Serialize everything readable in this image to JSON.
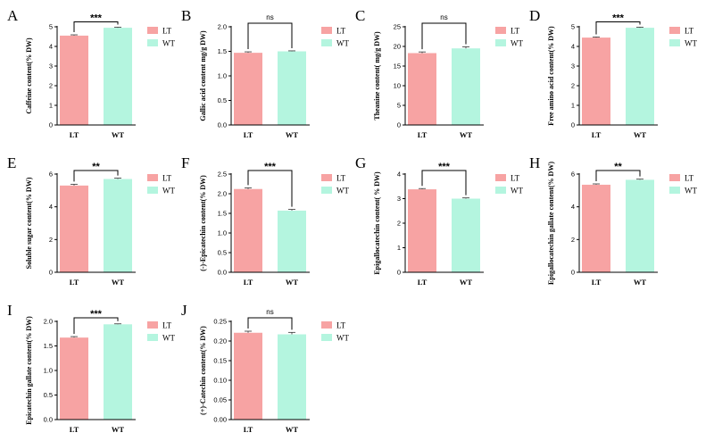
{
  "colors": {
    "LT": "#f7a3a3",
    "WT": "#b4f5df",
    "axis": "#000000"
  },
  "legend": [
    "LT",
    "WT"
  ],
  "chart_data": [
    {
      "panel": "A",
      "type": "bar",
      "ylabel": "Caffeine content(% DW)",
      "categories": [
        "LT",
        "WT"
      ],
      "values": [
        4.55,
        4.95
      ],
      "errors": [
        0.04,
        0.03
      ],
      "ylim": [
        0,
        5
      ],
      "yticks": [
        0,
        1,
        2,
        3,
        4,
        5
      ],
      "tick_labels": [
        "0",
        "1",
        "2",
        "3",
        "4",
        "5"
      ],
      "significance": "***"
    },
    {
      "panel": "B",
      "type": "bar",
      "ylabel": "Gallic acid content mg/g DW)",
      "categories": [
        "LT",
        "WT"
      ],
      "values": [
        1.47,
        1.5
      ],
      "errors": [
        0.02,
        0.01
      ],
      "ylim": [
        0,
        2.0
      ],
      "yticks": [
        0,
        0.5,
        1.0,
        1.5,
        2.0
      ],
      "tick_labels": [
        "0.0",
        "0.5",
        "1.0",
        "1.5",
        "2.0"
      ],
      "significance": "ns"
    },
    {
      "panel": "C",
      "type": "bar",
      "ylabel": "Theanine content( mg/g DW)",
      "categories": [
        "LT",
        "WT"
      ],
      "values": [
        18.3,
        19.5
      ],
      "errors": [
        0.3,
        0.4
      ],
      "ylim": [
        0,
        25
      ],
      "yticks": [
        0,
        5,
        10,
        15,
        20,
        25
      ],
      "tick_labels": [
        "0",
        "5",
        "10",
        "15",
        "20",
        "25"
      ],
      "significance": "ns"
    },
    {
      "panel": "D",
      "type": "bar",
      "ylabel": "Free amino acid content(% DW)",
      "categories": [
        "LT",
        "WT"
      ],
      "values": [
        4.45,
        4.95
      ],
      "errors": [
        0.03,
        0.03
      ],
      "ylim": [
        0,
        5
      ],
      "yticks": [
        0,
        1,
        2,
        3,
        4,
        5
      ],
      "tick_labels": [
        "0",
        "1",
        "2",
        "3",
        "4",
        "5"
      ],
      "significance": "***"
    },
    {
      "panel": "E",
      "type": "bar",
      "ylabel": "Soluble sugar content(% DW)",
      "categories": [
        "LT",
        "WT"
      ],
      "values": [
        5.3,
        5.7
      ],
      "errors": [
        0.08,
        0.05
      ],
      "ylim": [
        0,
        6
      ],
      "yticks": [
        0,
        2,
        4,
        6
      ],
      "tick_labels": [
        "0",
        "2",
        "4",
        "6"
      ],
      "significance": "**"
    },
    {
      "panel": "F",
      "type": "bar",
      "ylabel": "(-)-Epicatechin content(% DW)",
      "categories": [
        "LT",
        "WT"
      ],
      "values": [
        2.12,
        1.57
      ],
      "errors": [
        0.03,
        0.03
      ],
      "ylim": [
        0,
        2.5
      ],
      "yticks": [
        0,
        0.5,
        1.0,
        1.5,
        2.0,
        2.5
      ],
      "tick_labels": [
        "0.0",
        "0.5",
        "1.0",
        "1.5",
        "2.0",
        "2.5"
      ],
      "significance": "***"
    },
    {
      "panel": "G",
      "type": "bar",
      "ylabel": "Epigallocatechin content( % DW)",
      "categories": [
        "LT",
        "WT"
      ],
      "values": [
        3.38,
        3.0
      ],
      "errors": [
        0.03,
        0.03
      ],
      "ylim": [
        0,
        4
      ],
      "yticks": [
        0,
        1,
        2,
        3,
        4
      ],
      "tick_labels": [
        "0",
        "1",
        "2",
        "3",
        "4"
      ],
      "significance": "***"
    },
    {
      "panel": "H",
      "type": "bar",
      "ylabel": "Epigallocatechin gallate content(% DW)",
      "categories": [
        "LT",
        "WT"
      ],
      "values": [
        5.35,
        5.65
      ],
      "errors": [
        0.05,
        0.04
      ],
      "ylim": [
        0,
        6
      ],
      "yticks": [
        0,
        2,
        4,
        6
      ],
      "tick_labels": [
        "0",
        "2",
        "4",
        "6"
      ],
      "significance": "**"
    },
    {
      "panel": "I",
      "type": "bar",
      "ylabel": "Epicatechin gallate content(% DW)",
      "categories": [
        "LT",
        "WT"
      ],
      "values": [
        1.67,
        1.94
      ],
      "errors": [
        0.02,
        0.01
      ],
      "ylim": [
        0,
        2.0
      ],
      "yticks": [
        0,
        0.5,
        1.0,
        1.5,
        2.0
      ],
      "tick_labels": [
        "0.0",
        "0.5",
        "1.0",
        "1.5",
        "2.0"
      ],
      "significance": "***"
    },
    {
      "panel": "J",
      "type": "bar",
      "ylabel": "(+)-Catechin content(% DW)",
      "categories": [
        "LT",
        "WT"
      ],
      "values": [
        0.221,
        0.217
      ],
      "errors": [
        0.004,
        0.005
      ],
      "ylim": [
        0,
        0.25
      ],
      "yticks": [
        0,
        0.05,
        0.1,
        0.15,
        0.2,
        0.25
      ],
      "tick_labels": [
        "0.00",
        "0.05",
        "0.10",
        "0.15",
        "0.20",
        "0.25"
      ],
      "significance": "ns"
    }
  ]
}
